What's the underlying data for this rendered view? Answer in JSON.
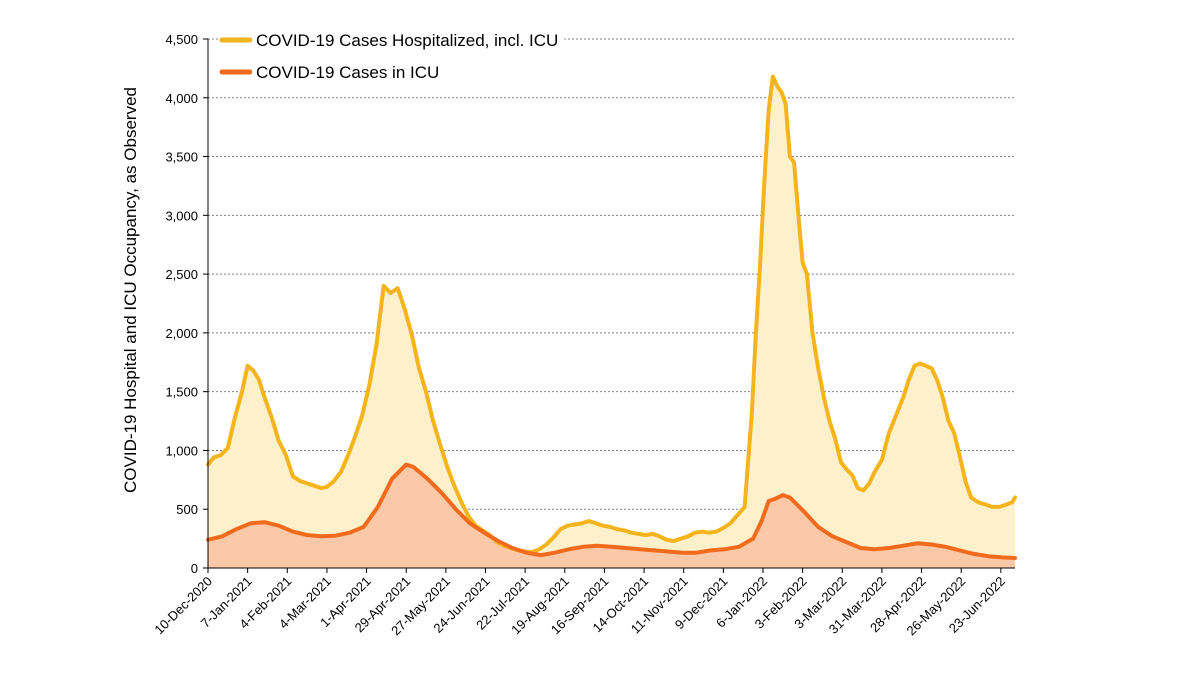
{
  "chart_data": {
    "type": "area",
    "title": "",
    "xlabel": "",
    "ylabel": "COVID-19 Hospital and ICU Occupancy, as Observed",
    "ylim": [
      0,
      4500
    ],
    "yticks": [
      "0",
      "500",
      "1,000",
      "1,500",
      "2,000",
      "2,500",
      "3,000",
      "3,500",
      "4,000",
      "4,500"
    ],
    "xlim": [
      "2020-12-10",
      "2022-07-03"
    ],
    "xticks": [
      "10-Dec-2020",
      "7-Jan-2021",
      "4-Feb-2021",
      "4-Mar-2021",
      "1-Apr-2021",
      "29-Apr-2021",
      "27-May-2021",
      "24-Jun-2021",
      "22-Jul-2021",
      "19-Aug-2021",
      "16-Sep-2021",
      "14-Oct-2021",
      "11-Nov-2021",
      "9-Dec-2021",
      "6-Jan-2022",
      "3-Feb-2022",
      "3-Mar-2022",
      "31-Mar-2022",
      "28-Apr-2022",
      "26-May-2022",
      "23-Jun-2022"
    ],
    "grid": "horizontal-dashed",
    "legend_position": "top-left",
    "series": [
      {
        "name": "COVID-19 Cases Hospitalized, incl. ICU",
        "line_color": "#f5b41c",
        "fill_color": "#fdf1cc",
        "points": [
          [
            "2020-12-10",
            880
          ],
          [
            "2020-12-14",
            940
          ],
          [
            "2020-12-19",
            960
          ],
          [
            "2020-12-24",
            1020
          ],
          [
            "2020-12-29",
            1280
          ],
          [
            "2021-01-03",
            1500
          ],
          [
            "2021-01-07",
            1720
          ],
          [
            "2021-01-11",
            1680
          ],
          [
            "2021-01-15",
            1600
          ],
          [
            "2021-01-19",
            1450
          ],
          [
            "2021-01-24",
            1280
          ],
          [
            "2021-01-29",
            1080
          ],
          [
            "2021-02-03",
            960
          ],
          [
            "2021-02-08",
            780
          ],
          [
            "2021-02-13",
            740
          ],
          [
            "2021-02-18",
            720
          ],
          [
            "2021-02-23",
            700
          ],
          [
            "2021-02-28",
            680
          ],
          [
            "2021-03-04",
            690
          ],
          [
            "2021-03-09",
            740
          ],
          [
            "2021-03-14",
            820
          ],
          [
            "2021-03-19",
            960
          ],
          [
            "2021-03-24",
            1120
          ],
          [
            "2021-03-29",
            1300
          ],
          [
            "2021-04-03",
            1560
          ],
          [
            "2021-04-08",
            1900
          ],
          [
            "2021-04-13",
            2400
          ],
          [
            "2021-04-18",
            2340
          ],
          [
            "2021-04-23",
            2380
          ],
          [
            "2021-04-28",
            2200
          ],
          [
            "2021-05-03",
            1980
          ],
          [
            "2021-05-08",
            1700
          ],
          [
            "2021-05-13",
            1500
          ],
          [
            "2021-05-18",
            1250
          ],
          [
            "2021-05-23",
            1050
          ],
          [
            "2021-05-28",
            860
          ],
          [
            "2021-06-02",
            700
          ],
          [
            "2021-06-07",
            560
          ],
          [
            "2021-06-12",
            440
          ],
          [
            "2021-06-17",
            360
          ],
          [
            "2021-06-22",
            320
          ],
          [
            "2021-06-27",
            280
          ],
          [
            "2021-07-02",
            220
          ],
          [
            "2021-07-07",
            190
          ],
          [
            "2021-07-12",
            170
          ],
          [
            "2021-07-17",
            150
          ],
          [
            "2021-07-22",
            140
          ],
          [
            "2021-07-27",
            135
          ],
          [
            "2021-08-01",
            160
          ],
          [
            "2021-08-06",
            200
          ],
          [
            "2021-08-11",
            260
          ],
          [
            "2021-08-16",
            330
          ],
          [
            "2021-08-21",
            360
          ],
          [
            "2021-08-26",
            370
          ],
          [
            "2021-08-31",
            380
          ],
          [
            "2021-09-05",
            400
          ],
          [
            "2021-09-10",
            380
          ],
          [
            "2021-09-15",
            360
          ],
          [
            "2021-09-20",
            350
          ],
          [
            "2021-09-25",
            330
          ],
          [
            "2021-09-30",
            320
          ],
          [
            "2021-10-05",
            300
          ],
          [
            "2021-10-10",
            290
          ],
          [
            "2021-10-15",
            280
          ],
          [
            "2021-10-20",
            290
          ],
          [
            "2021-10-25",
            270
          ],
          [
            "2021-10-30",
            240
          ],
          [
            "2021-11-04",
            230
          ],
          [
            "2021-11-09",
            250
          ],
          [
            "2021-11-14",
            270
          ],
          [
            "2021-11-19",
            300
          ],
          [
            "2021-11-24",
            310
          ],
          [
            "2021-11-29",
            300
          ],
          [
            "2021-12-04",
            310
          ],
          [
            "2021-12-09",
            340
          ],
          [
            "2021-12-14",
            380
          ],
          [
            "2021-12-19",
            450
          ],
          [
            "2021-12-24",
            520
          ],
          [
            "2021-12-29",
            1300
          ],
          [
            "2022-01-01",
            2000
          ],
          [
            "2022-01-04",
            2600
          ],
          [
            "2022-01-07",
            3300
          ],
          [
            "2022-01-10",
            3900
          ],
          [
            "2022-01-13",
            4180
          ],
          [
            "2022-01-16",
            4100
          ],
          [
            "2022-01-19",
            4050
          ],
          [
            "2022-01-22",
            3950
          ],
          [
            "2022-01-25",
            3500
          ],
          [
            "2022-01-28",
            3450
          ],
          [
            "2022-01-31",
            3000
          ],
          [
            "2022-02-03",
            2600
          ],
          [
            "2022-02-06",
            2500
          ],
          [
            "2022-02-10",
            2000
          ],
          [
            "2022-02-14",
            1700
          ],
          [
            "2022-02-18",
            1450
          ],
          [
            "2022-02-22",
            1250
          ],
          [
            "2022-02-26",
            1100
          ],
          [
            "2022-03-02",
            900
          ],
          [
            "2022-03-06",
            840
          ],
          [
            "2022-03-10",
            790
          ],
          [
            "2022-03-14",
            680
          ],
          [
            "2022-03-18",
            660
          ],
          [
            "2022-03-22",
            720
          ],
          [
            "2022-03-26",
            820
          ],
          [
            "2022-03-31",
            920
          ],
          [
            "2022-04-05",
            1150
          ],
          [
            "2022-04-10",
            1300
          ],
          [
            "2022-04-15",
            1450
          ],
          [
            "2022-04-19",
            1600
          ],
          [
            "2022-04-23",
            1720
          ],
          [
            "2022-04-27",
            1740
          ],
          [
            "2022-05-01",
            1720
          ],
          [
            "2022-05-05",
            1700
          ],
          [
            "2022-05-09",
            1600
          ],
          [
            "2022-05-13",
            1450
          ],
          [
            "2022-05-17",
            1250
          ],
          [
            "2022-05-21",
            1150
          ],
          [
            "2022-05-25",
            950
          ],
          [
            "2022-05-29",
            740
          ],
          [
            "2022-06-02",
            600
          ],
          [
            "2022-06-07",
            560
          ],
          [
            "2022-06-12",
            540
          ],
          [
            "2022-06-17",
            520
          ],
          [
            "2022-06-22",
            520
          ],
          [
            "2022-06-27",
            540
          ],
          [
            "2022-07-01",
            560
          ],
          [
            "2022-07-03",
            600
          ]
        ]
      },
      {
        "name": "COVID-19 Cases in ICU",
        "line_color": "#f26b1d",
        "fill_color": "#fbc8a8",
        "points": [
          [
            "2020-12-10",
            240
          ],
          [
            "2020-12-20",
            270
          ],
          [
            "2020-12-30",
            330
          ],
          [
            "2021-01-09",
            380
          ],
          [
            "2021-01-19",
            390
          ],
          [
            "2021-01-29",
            360
          ],
          [
            "2021-02-08",
            310
          ],
          [
            "2021-02-18",
            280
          ],
          [
            "2021-02-28",
            270
          ],
          [
            "2021-03-10",
            275
          ],
          [
            "2021-03-20",
            300
          ],
          [
            "2021-03-30",
            350
          ],
          [
            "2021-04-09",
            520
          ],
          [
            "2021-04-19",
            760
          ],
          [
            "2021-04-29",
            880
          ],
          [
            "2021-05-04",
            860
          ],
          [
            "2021-05-14",
            760
          ],
          [
            "2021-05-24",
            640
          ],
          [
            "2021-06-03",
            500
          ],
          [
            "2021-06-13",
            380
          ],
          [
            "2021-06-23",
            300
          ],
          [
            "2021-07-03",
            230
          ],
          [
            "2021-07-13",
            170
          ],
          [
            "2021-07-23",
            130
          ],
          [
            "2021-08-02",
            110
          ],
          [
            "2021-08-12",
            130
          ],
          [
            "2021-08-22",
            160
          ],
          [
            "2021-09-01",
            180
          ],
          [
            "2021-09-11",
            190
          ],
          [
            "2021-09-21",
            180
          ],
          [
            "2021-10-01",
            170
          ],
          [
            "2021-10-11",
            160
          ],
          [
            "2021-10-21",
            150
          ],
          [
            "2021-10-31",
            140
          ],
          [
            "2021-11-10",
            130
          ],
          [
            "2021-11-20",
            130
          ],
          [
            "2021-11-30",
            150
          ],
          [
            "2021-12-10",
            160
          ],
          [
            "2021-12-20",
            180
          ],
          [
            "2021-12-30",
            250
          ],
          [
            "2022-01-05",
            400
          ],
          [
            "2022-01-10",
            570
          ],
          [
            "2022-01-15",
            590
          ],
          [
            "2022-01-20",
            620
          ],
          [
            "2022-01-25",
            600
          ],
          [
            "2022-02-04",
            480
          ],
          [
            "2022-02-14",
            350
          ],
          [
            "2022-02-24",
            270
          ],
          [
            "2022-03-06",
            220
          ],
          [
            "2022-03-16",
            170
          ],
          [
            "2022-03-26",
            160
          ],
          [
            "2022-04-05",
            170
          ],
          [
            "2022-04-15",
            190
          ],
          [
            "2022-04-25",
            210
          ],
          [
            "2022-05-05",
            200
          ],
          [
            "2022-05-15",
            180
          ],
          [
            "2022-05-25",
            150
          ],
          [
            "2022-06-04",
            120
          ],
          [
            "2022-06-14",
            100
          ],
          [
            "2022-06-24",
            90
          ],
          [
            "2022-07-03",
            85
          ]
        ]
      }
    ]
  }
}
